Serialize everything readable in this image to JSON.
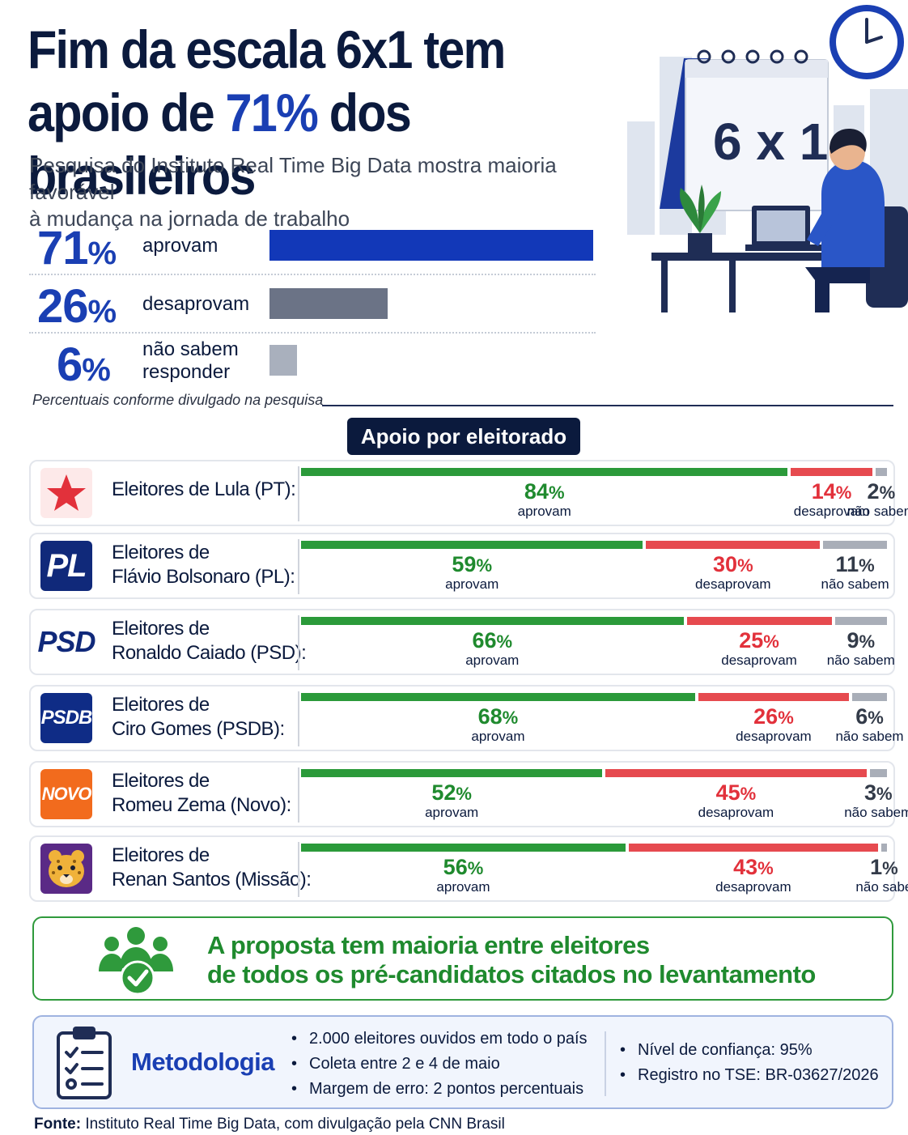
{
  "header": {
    "title_line1": "Fim da escala 6x1 tem",
    "title_line2_pre": "apoio de ",
    "title_line2_hl": "71%",
    "title_line2_post": " dos brasileiros",
    "subtitle_line1": "Pesquisa do Instituto Real Time Big Data mostra maioria favorável",
    "subtitle_line2": "à mudança na jornada de trabalho"
  },
  "illustration": {
    "calendar_text": "6 x 1",
    "icons": [
      "clock-icon",
      "calendar-icon",
      "worker-at-laptop-icon",
      "plant-icon"
    ]
  },
  "summary": {
    "note": "Percentuais conforme divulgado na pesquisa",
    "items": [
      {
        "value": 71,
        "pct": "71",
        "sign": "%",
        "label": "aprovam",
        "color": "#1238b8"
      },
      {
        "value": 26,
        "pct": "26",
        "sign": "%",
        "label": "desaprovam",
        "color": "#6b7386"
      },
      {
        "value": 6,
        "pct": "6",
        "sign": "%",
        "label1": "não sabem",
        "label2": "responder",
        "color": "#a9b0bd"
      }
    ]
  },
  "section_title": "Apoio por eleitorado",
  "colors": {
    "approve": "#2b9a3a",
    "disapprove": "#e64a4f",
    "unknown": "#a9aeb8"
  },
  "chart_data": {
    "type": "bar",
    "orientation": "horizontal-stacked",
    "categories": [
      "Eleitores de Lula (PT):",
      "Eleitores de Flávio Bolsonaro (PL):",
      "Eleitores de Ronaldo Caiado (PSD):",
      "Eleitores de Ciro Gomes (PSDB):",
      "Eleitores de Romeu Zema (Novo):",
      "Eleitores de Renan Santos (Missão):"
    ],
    "series": [
      {
        "name": "aprovam",
        "values": [
          84,
          59,
          66,
          68,
          52,
          56
        ]
      },
      {
        "name": "desaprovam",
        "values": [
          14,
          30,
          25,
          26,
          45,
          43
        ]
      },
      {
        "name": "não sabem",
        "values": [
          2,
          11,
          9,
          6,
          3,
          1
        ]
      }
    ]
  },
  "parties": [
    {
      "logo": "star-icon",
      "logo_text": "",
      "line1": "Eleitores de Lula (PT):",
      "line2": "",
      "approve": "84",
      "disapprove": "14",
      "unknown": "2",
      "sign": "%",
      "l_approve": "aprovam",
      "l_disapprove": "desaprovam",
      "l_unknown": "não sabem"
    },
    {
      "logo": "pl-logo",
      "logo_text": "PL",
      "line1": "Eleitores de",
      "line2": "Flávio Bolsonaro (PL):",
      "approve": "59",
      "disapprove": "30",
      "unknown": "11",
      "sign": "%",
      "l_approve": "aprovam",
      "l_disapprove": "desaprovam",
      "l_unknown": "não sabem"
    },
    {
      "logo": "psd-logo",
      "logo_text": "PSD",
      "line1": "Eleitores de",
      "line2": "Ronaldo Caiado (PSD):",
      "approve": "66",
      "disapprove": "25",
      "unknown": "9",
      "sign": "%",
      "l_approve": "aprovam",
      "l_disapprove": "desaprovam",
      "l_unknown": "não sabem"
    },
    {
      "logo": "psdb-logo",
      "logo_text": "PSDB",
      "line1": "Eleitores de",
      "line2": "Ciro Gomes (PSDB):",
      "approve": "68",
      "disapprove": "26",
      "unknown": "6",
      "sign": "%",
      "l_approve": "aprovam",
      "l_disapprove": "desaprovam",
      "l_unknown": "não sabem"
    },
    {
      "logo": "novo-logo",
      "logo_text": "NOVO",
      "line1": "Eleitores de",
      "line2": "Romeu Zema (Novo):",
      "approve": "52",
      "disapprove": "45",
      "unknown": "3",
      "sign": "%",
      "l_approve": "aprovam",
      "l_disapprove": "desaprovam",
      "l_unknown": "não sabem"
    },
    {
      "logo": "jaguar-icon",
      "logo_text": "",
      "line1": "Eleitores de",
      "line2": "Renan Santos (Missão):",
      "approve": "56",
      "disapprove": "43",
      "unknown": "1",
      "sign": "%",
      "l_approve": "aprovam",
      "l_disapprove": "desaprovam",
      "l_unknown": "não sabe"
    }
  ],
  "conclusion": {
    "line1": "A proposta tem maioria entre eleitores",
    "line2": "de todos os pré-candidatos citados no levantamento",
    "icon": "people-check-icon"
  },
  "methodology": {
    "title": "Metodologia",
    "icon": "clipboard-checklist-icon",
    "col1": [
      "2.000 eleitores ouvidos em todo o país",
      "Coleta entre 2 e 4 de maio",
      "Margem de erro: 2 pontos percentuais"
    ],
    "col2": [
      "Nível de confiança: 95%",
      "Registro no TSE: BR-03627/2026"
    ]
  },
  "source": {
    "label": "Fonte:",
    "text": " Instituto Real Time Big Data, com divulgação pela CNN Brasil"
  }
}
